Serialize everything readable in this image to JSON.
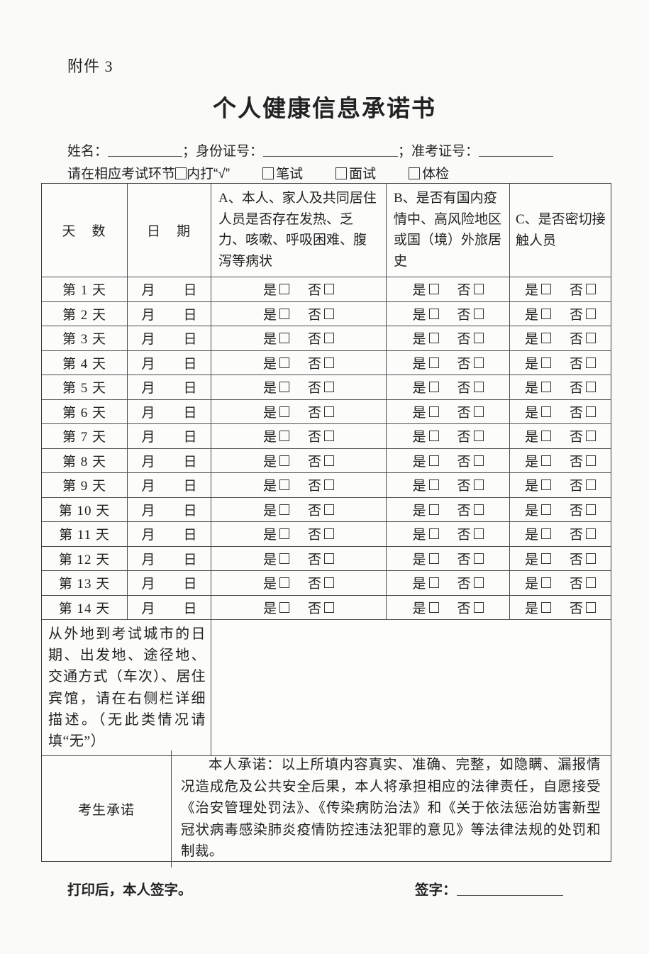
{
  "page": {
    "attachment_label": "附件 3",
    "title": "个人健康信息承诺书"
  },
  "info_line": {
    "name_label": "姓名：",
    "id_label": "；身份证号：",
    "ticket_label": "；准考证号："
  },
  "check_line": {
    "instruction_prefix": "请在相应考试环节",
    "instruction_suffix": "内打“√”",
    "options": [
      {
        "label": "笔试"
      },
      {
        "label": "面试"
      },
      {
        "label": "体检"
      }
    ]
  },
  "table": {
    "headers": {
      "days": "天　数",
      "date": "日　期",
      "col_a": "A、本人、家人及共同居住人员是否存在发热、乏力、咳嗽、呼吸困难、腹泻等病状",
      "col_b": "B、是否有国内疫情中、高风险地区或国（境）外旅居史",
      "col_c": "C、是否密切接触人员"
    },
    "month_label": "月",
    "day_label": "日",
    "yes_label": "是",
    "no_label": "否",
    "days": [
      "第 1 天",
      "第 2 天",
      "第 3 天",
      "第 4 天",
      "第 5 天",
      "第 6 天",
      "第 7 天",
      "第 8 天",
      "第 9 天",
      "第 10 天",
      "第 11 天",
      "第 12 天",
      "第 13 天",
      "第 14 天"
    ]
  },
  "travel_row": {
    "label": "从外地到考试城市的日期、出发地、途径地、交通方式（车次）、居住宾馆，请在右侧栏详细描述。（无此类情况请填“无”）",
    "value": ""
  },
  "pledge_row": {
    "label": "考生承诺",
    "text": "本人承诺：以上所填内容真实、准确、完整，如隐瞒、漏报情况造成危及公共安全后果，本人将承担相应的法律责任，自愿接受《治安管理处罚法》、《传染病防治法》和《关于依法惩治妨害新型冠状病毒感染肺炎疫情防控违法犯罪的意见》等法律法规的处罚和制裁。"
  },
  "footer": {
    "print_note": "打印后，本人签字。",
    "sign_label": "签字："
  }
}
